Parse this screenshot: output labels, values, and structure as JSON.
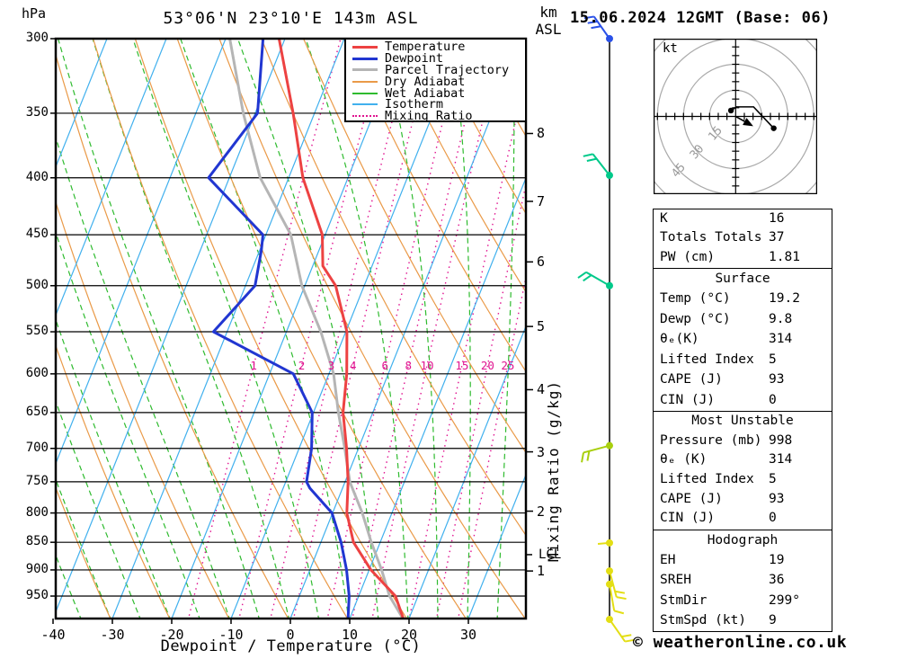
{
  "header": {
    "pressure_unit": "hPa",
    "title": "53°06'N 23°10'E 143m ASL",
    "km_label": "km",
    "asl_label": "ASL",
    "datetime": "15.06.2024 12GMT (Base: 06)"
  },
  "axes": {
    "xlabel": "Dewpoint / Temperature (°C)",
    "mixing_axis_label": "Mixing Ratio (g/kg)",
    "lcl_label": "LCL",
    "pressure_ticks": [
      300,
      350,
      400,
      450,
      500,
      550,
      600,
      650,
      700,
      750,
      800,
      850,
      900,
      950
    ],
    "temp_ticks": [
      -40,
      -30,
      -20,
      -10,
      0,
      10,
      20,
      30
    ],
    "km_ticks": [
      {
        "km": "1",
        "p": 902
      },
      {
        "km": "2",
        "p": 797
      },
      {
        "km": "3",
        "p": 705
      },
      {
        "km": "4",
        "p": 620
      },
      {
        "km": "5",
        "p": 544
      },
      {
        "km": "6",
        "p": 476
      },
      {
        "km": "7",
        "p": 420
      },
      {
        "km": "8",
        "p": 365
      }
    ],
    "lcl_pressure": 872
  },
  "legend": {
    "items": [
      {
        "label": "Temperature",
        "color": "#ed4242",
        "width": 3,
        "dotted": false
      },
      {
        "label": "Dewpoint",
        "color": "#2136d1",
        "width": 3,
        "dotted": false
      },
      {
        "label": "Parcel Trajectory",
        "color": "#b5b5b5",
        "width": 3,
        "dotted": false
      },
      {
        "label": "Dry Adiabat",
        "color": "#ea9a48",
        "width": 2,
        "dotted": false
      },
      {
        "label": "Wet Adiabat",
        "color": "#2fbb2f",
        "width": 2,
        "dotted": false
      },
      {
        "label": "Isotherm",
        "color": "#41b0ee",
        "width": 2,
        "dotted": false
      },
      {
        "label": "Mixing Ratio",
        "color": "#e01490",
        "width": 2,
        "dotted": true
      }
    ]
  },
  "chart_data": {
    "type": "skewt-log-p",
    "pressure_range": [
      300,
      1000
    ],
    "temp_range_at_surface": [
      -40,
      40
    ],
    "isotherm_step_c": 10,
    "dry_adiabat_step_c": 10,
    "wet_adiabat_step_c": 5,
    "mixing_ratios_g_kg": [
      1,
      2,
      3,
      4,
      6,
      8,
      10,
      15,
      20,
      25
    ],
    "series": [
      {
        "name": "Temperature",
        "color": "#ed4242",
        "width": 3,
        "points": [
          [
            300,
            -41
          ],
          [
            350,
            -33.6
          ],
          [
            400,
            -27.6
          ],
          [
            450,
            -20.5
          ],
          [
            480,
            -18.3
          ],
          [
            500,
            -14.8
          ],
          [
            550,
            -9.8
          ],
          [
            600,
            -7.0
          ],
          [
            650,
            -5.0
          ],
          [
            700,
            -2.0
          ],
          [
            750,
            0.5
          ],
          [
            800,
            2.4
          ],
          [
            850,
            5.5
          ],
          [
            900,
            10.3
          ],
          [
            950,
            16.2
          ],
          [
            998,
            19.2
          ]
        ]
      },
      {
        "name": "Dewpoint",
        "color": "#2136d1",
        "width": 3,
        "points": [
          [
            300,
            -43.7
          ],
          [
            350,
            -39.6
          ],
          [
            400,
            -43.5
          ],
          [
            450,
            -30.5
          ],
          [
            465,
            -29.7
          ],
          [
            500,
            -28.4
          ],
          [
            550,
            -32.3
          ],
          [
            600,
            -16.0
          ],
          [
            650,
            -10.2
          ],
          [
            700,
            -7.9
          ],
          [
            750,
            -6.5
          ],
          [
            760,
            -5.5
          ],
          [
            800,
            -0.1
          ],
          [
            850,
            3.4
          ],
          [
            900,
            6.2
          ],
          [
            950,
            8.4
          ],
          [
            998,
            9.8
          ]
        ]
      },
      {
        "name": "Parcel Trajectory",
        "color": "#b5b5b5",
        "width": 3,
        "points": [
          [
            300,
            -49.3
          ],
          [
            350,
            -42.0
          ],
          [
            400,
            -34.8
          ],
          [
            450,
            -25.8
          ],
          [
            500,
            -20.5
          ],
          [
            550,
            -14.2
          ],
          [
            600,
            -9.2
          ],
          [
            650,
            -5.8
          ],
          [
            700,
            -2.3
          ],
          [
            750,
            0.8
          ],
          [
            800,
            5.0
          ],
          [
            850,
            8.5
          ],
          [
            900,
            12.1
          ],
          [
            950,
            15.2
          ],
          [
            998,
            19.2
          ]
        ]
      }
    ],
    "wind_barbs": [
      {
        "p": 300,
        "color": "#2a51e8",
        "angle": 125,
        "ticks": 3
      },
      {
        "p": 398,
        "color": "#00c98a",
        "angle": 128,
        "ticks": 2
      },
      {
        "p": 500,
        "color": "#00c98a",
        "angle": 150,
        "ticks": 2
      },
      {
        "p": 696,
        "color": "#a8cf0e",
        "angle": 195,
        "ticks": 2
      },
      {
        "p": 851,
        "color": "#e3de14",
        "angle": 185,
        "ticks": 0
      },
      {
        "p": 902,
        "color": "#e3de14",
        "angle": -75,
        "ticks": 2
      },
      {
        "p": 927,
        "color": "#e3de14",
        "angle": -80,
        "ticks": 1
      },
      {
        "p": 997,
        "color": "#e3de14",
        "angle": -55,
        "ticks": 2
      }
    ],
    "hodograph": {
      "unit_label": "kt",
      "rings_kt": [
        15,
        30,
        45,
        60
      ],
      "ring_labels": [
        "15",
        "30",
        "45"
      ],
      "tick_step_kt": 5,
      "trace_kt": [
        [
          -2.7,
          3.4
        ],
        [
          0.5,
          5.5
        ],
        [
          10.3,
          5.5
        ],
        [
          21.9,
          -6.8
        ]
      ],
      "storm_motion": {
        "dir_deg": 299,
        "spd_kt": 9
      }
    }
  },
  "panels": [
    {
      "title": "",
      "rows": [
        [
          "K",
          "16"
        ],
        [
          "Totals Totals",
          "37"
        ],
        [
          "PW (cm)",
          "1.81"
        ]
      ]
    },
    {
      "title": "Surface",
      "rows": [
        [
          "Temp (°C)",
          "19.2"
        ],
        [
          "Dewp (°C)",
          "9.8"
        ],
        [
          "θₑ(K)",
          "314"
        ],
        [
          "Lifted Index",
          "5"
        ],
        [
          "CAPE (J)",
          "93"
        ],
        [
          "CIN (J)",
          "0"
        ]
      ]
    },
    {
      "title": "Most Unstable",
      "rows": [
        [
          "Pressure (mb)",
          "998"
        ],
        [
          "θₑ (K)",
          "314"
        ],
        [
          "Lifted Index",
          "5"
        ],
        [
          "CAPE (J)",
          "93"
        ],
        [
          "CIN (J)",
          "0"
        ]
      ]
    },
    {
      "title": "Hodograph",
      "rows": [
        [
          "EH",
          "19"
        ],
        [
          "SREH",
          "36"
        ],
        [
          "StmDir",
          "299°"
        ],
        [
          "StmSpd (kt)",
          "9"
        ]
      ]
    }
  ],
  "footer": {
    "copyright": "© weatheronline.co.uk"
  }
}
